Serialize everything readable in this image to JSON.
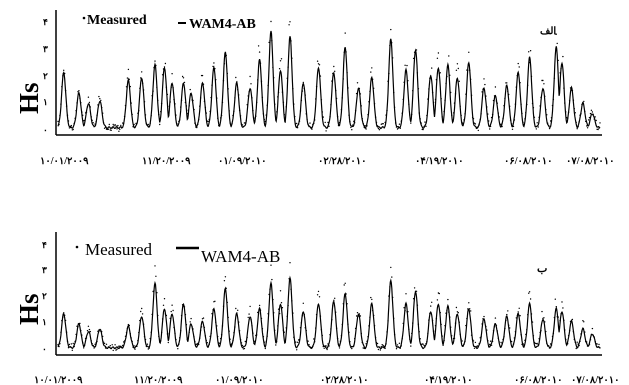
{
  "chart_data": [
    {
      "type": "line",
      "panel_label": "الف",
      "ylabel": "Hs",
      "yticks": [
        "۴",
        "۳",
        "۲",
        "۱",
        "۰"
      ],
      "ylim": [
        0,
        4.3
      ],
      "xlim_days": [
        0,
        285
      ],
      "x_tick_labels": [
        "۱۰/۰۱/۲۰۰۹",
        "۱۱/۲۰/۲۰۰۹",
        "۰۱/۰۹/۲۰۱۰",
        "۰۲/۲۸/۲۰۱۰",
        "۰۴/۱۹/۲۰۱۰",
        "۰۶/۰۸/۲۰۱۰",
        "۰۷/۰۸/۲۰۱۰"
      ],
      "legend": [
        {
          "name": "Measured",
          "style": "dots"
        },
        {
          "name": "WAM4-AB",
          "style": "line"
        }
      ],
      "peaks": [
        {
          "t": 3,
          "h": 2.4
        },
        {
          "t": 11,
          "h": 1.6
        },
        {
          "t": 16,
          "h": 1.2
        },
        {
          "t": 22,
          "h": 1.3
        },
        {
          "t": 37,
          "h": 2.1
        },
        {
          "t": 44,
          "h": 2.2
        },
        {
          "t": 51,
          "h": 2.7
        },
        {
          "t": 56,
          "h": 2.6
        },
        {
          "t": 60,
          "h": 2.0
        },
        {
          "t": 66,
          "h": 2.0
        },
        {
          "t": 70,
          "h": 1.6
        },
        {
          "t": 76,
          "h": 2.0
        },
        {
          "t": 82,
          "h": 2.6
        },
        {
          "t": 88,
          "h": 3.2
        },
        {
          "t": 94,
          "h": 2.0
        },
        {
          "t": 101,
          "h": 1.8
        },
        {
          "t": 106,
          "h": 2.9
        },
        {
          "t": 112,
          "h": 4.0
        },
        {
          "t": 117,
          "h": 2.5
        },
        {
          "t": 122,
          "h": 3.8
        },
        {
          "t": 129,
          "h": 2.0
        },
        {
          "t": 137,
          "h": 2.6
        },
        {
          "t": 145,
          "h": 2.4
        },
        {
          "t": 151,
          "h": 3.4
        },
        {
          "t": 158,
          "h": 1.8
        },
        {
          "t": 165,
          "h": 2.2
        },
        {
          "t": 175,
          "h": 3.7
        },
        {
          "t": 183,
          "h": 2.5
        },
        {
          "t": 188,
          "h": 3.3
        },
        {
          "t": 196,
          "h": 2.3
        },
        {
          "t": 200,
          "h": 2.6
        },
        {
          "t": 205,
          "h": 2.7
        },
        {
          "t": 210,
          "h": 2.2
        },
        {
          "t": 216,
          "h": 2.8
        },
        {
          "t": 224,
          "h": 1.8
        },
        {
          "t": 230,
          "h": 1.5
        },
        {
          "t": 236,
          "h": 1.9
        },
        {
          "t": 242,
          "h": 2.4
        },
        {
          "t": 248,
          "h": 3.0
        },
        {
          "t": 255,
          "h": 1.8
        },
        {
          "t": 262,
          "h": 3.4
        },
        {
          "t": 265,
          "h": 2.8
        },
        {
          "t": 270,
          "h": 1.8
        },
        {
          "t": 276,
          "h": 1.2
        },
        {
          "t": 281,
          "h": 0.8
        }
      ]
    },
    {
      "type": "line",
      "panel_label": "ب",
      "ylabel": "Hs",
      "yticks": [
        "۴",
        "۳",
        "۲",
        "۱",
        "۰"
      ],
      "ylim": [
        0,
        4.3
      ],
      "xlim_days": [
        0,
        285
      ],
      "x_tick_labels": [
        "۱۰/۰۱/۲۰۰۹",
        "۱۱/۲۰/۲۰۰۹",
        "۰۱/۰۹/۲۰۱۰",
        "۰۲/۲۸/۲۰۱۰",
        "۰۴/۱۹/۲۰۱۰",
        "۰۶/۰۸/۲۰۱۰",
        "۰۷/۰۸/۲۰۱۰"
      ],
      "legend": [
        {
          "name": "Measured",
          "style": "dots"
        },
        {
          "name": "WAM4-AB",
          "style": "line"
        }
      ],
      "peaks": [
        {
          "t": 3,
          "h": 1.6
        },
        {
          "t": 11,
          "h": 1.2
        },
        {
          "t": 16,
          "h": 0.9
        },
        {
          "t": 22,
          "h": 1.0
        },
        {
          "t": 37,
          "h": 1.1
        },
        {
          "t": 44,
          "h": 1.5
        },
        {
          "t": 51,
          "h": 2.8
        },
        {
          "t": 56,
          "h": 1.8
        },
        {
          "t": 60,
          "h": 1.6
        },
        {
          "t": 66,
          "h": 2.0
        },
        {
          "t": 70,
          "h": 1.2
        },
        {
          "t": 76,
          "h": 1.3
        },
        {
          "t": 82,
          "h": 1.8
        },
        {
          "t": 88,
          "h": 2.6
        },
        {
          "t": 94,
          "h": 1.6
        },
        {
          "t": 101,
          "h": 1.5
        },
        {
          "t": 106,
          "h": 1.8
        },
        {
          "t": 112,
          "h": 2.8
        },
        {
          "t": 117,
          "h": 2.0
        },
        {
          "t": 122,
          "h": 3.0
        },
        {
          "t": 129,
          "h": 1.7
        },
        {
          "t": 137,
          "h": 2.0
        },
        {
          "t": 145,
          "h": 2.1
        },
        {
          "t": 151,
          "h": 2.4
        },
        {
          "t": 158,
          "h": 1.6
        },
        {
          "t": 165,
          "h": 2.0
        },
        {
          "t": 175,
          "h": 2.9
        },
        {
          "t": 183,
          "h": 2.0
        },
        {
          "t": 188,
          "h": 2.5
        },
        {
          "t": 196,
          "h": 1.7
        },
        {
          "t": 200,
          "h": 2.0
        },
        {
          "t": 205,
          "h": 1.9
        },
        {
          "t": 210,
          "h": 1.6
        },
        {
          "t": 216,
          "h": 1.8
        },
        {
          "t": 224,
          "h": 1.4
        },
        {
          "t": 230,
          "h": 1.2
        },
        {
          "t": 236,
          "h": 1.5
        },
        {
          "t": 242,
          "h": 1.6
        },
        {
          "t": 248,
          "h": 2.0
        },
        {
          "t": 255,
          "h": 1.4
        },
        {
          "t": 262,
          "h": 1.8
        },
        {
          "t": 265,
          "h": 1.7
        },
        {
          "t": 270,
          "h": 1.3
        },
        {
          "t": 276,
          "h": 1.0
        },
        {
          "t": 281,
          "h": 0.8
        }
      ]
    }
  ]
}
